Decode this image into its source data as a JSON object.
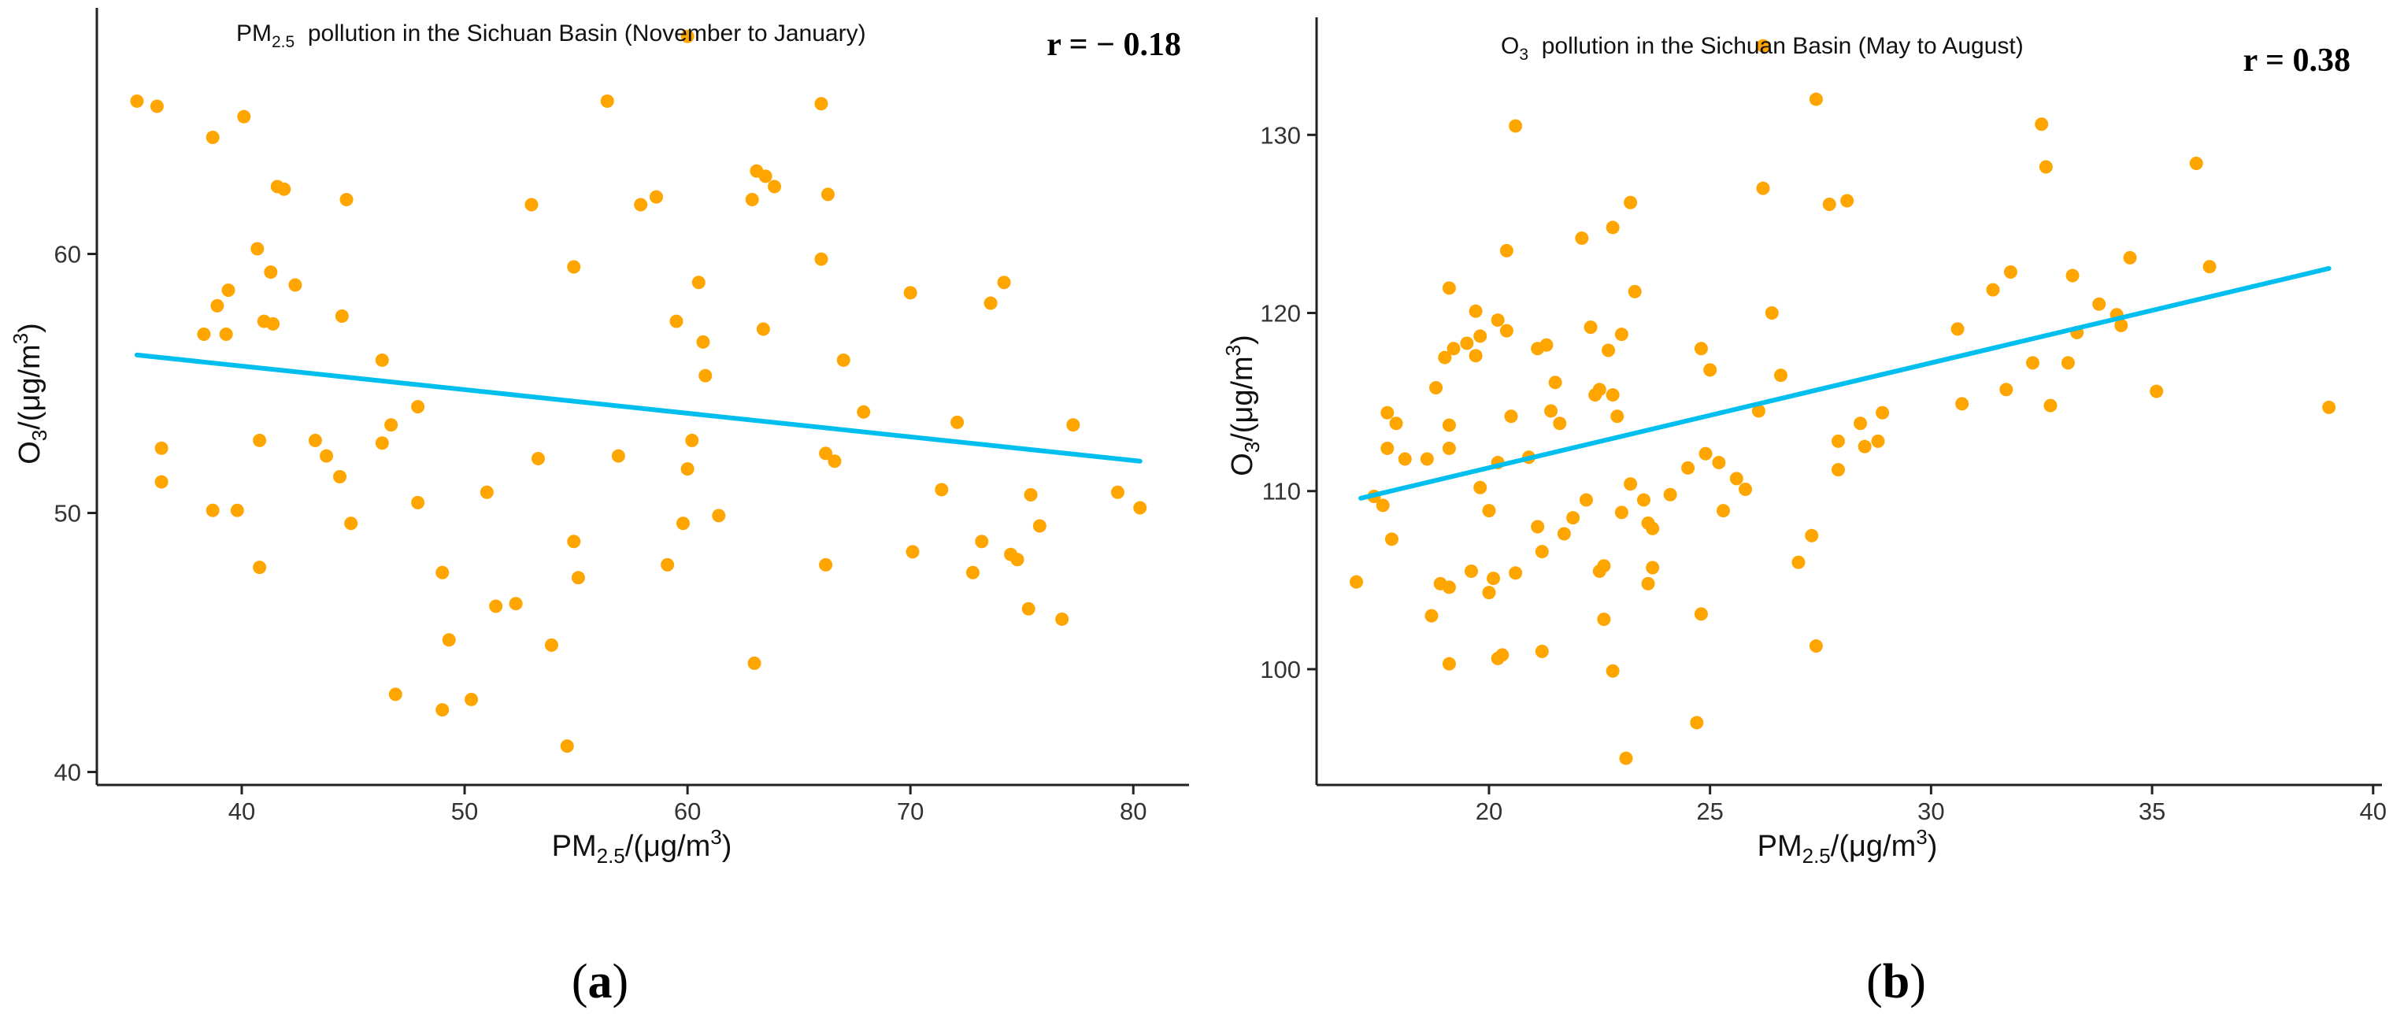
{
  "figure": {
    "panel_a": {
      "label_open": "(",
      "label_letter": "a",
      "label_close": ")"
    },
    "panel_b": {
      "label_open": "(",
      "label_letter": "b",
      "label_close": ")"
    }
  },
  "colors": {
    "point": "#FFA500",
    "trendline": "#00BFEF",
    "axis": "#222222"
  },
  "chart_data": [
    {
      "id": "a",
      "type": "scatter",
      "title_prefix": "PM",
      "title_sub": "2.5",
      "title_rest": "  pollution in the Sichuan Basin (November to January)",
      "annotation": "r = − 0.18",
      "xlabel_base": "PM",
      "xlabel_sub": "2.5",
      "xlabel_unit": "/(μg/m",
      "xlabel_sup": "3",
      "xlabel_close": ")",
      "ylabel_base": "O",
      "ylabel_sub": "3",
      "ylabel_unit": "/(μg/m",
      "ylabel_sup": "3",
      "ylabel_close": ")",
      "xlim": [
        33.5,
        82.5
      ],
      "ylim": [
        39.5,
        69.5
      ],
      "xticks": [
        40,
        50,
        60,
        70,
        80
      ],
      "yticks": [
        40,
        50,
        60
      ],
      "trend": {
        "x": [
          35.3,
          80.3
        ],
        "y": [
          56.1,
          52.0
        ]
      },
      "points": [
        [
          35.3,
          65.9
        ],
        [
          36.2,
          65.7
        ],
        [
          36.4,
          52.5
        ],
        [
          36.4,
          51.2
        ],
        [
          38.3,
          56.9
        ],
        [
          38.7,
          50.1
        ],
        [
          38.7,
          64.5
        ],
        [
          38.9,
          58.0
        ],
        [
          39.3,
          56.9
        ],
        [
          39.4,
          58.6
        ],
        [
          39.8,
          50.1
        ],
        [
          40.1,
          65.3
        ],
        [
          40.7,
          60.2
        ],
        [
          40.8,
          52.8
        ],
        [
          40.8,
          47.9
        ],
        [
          41.0,
          57.4
        ],
        [
          41.3,
          59.3
        ],
        [
          41.4,
          57.3
        ],
        [
          41.6,
          62.6
        ],
        [
          41.9,
          62.5
        ],
        [
          42.4,
          58.8
        ],
        [
          43.3,
          52.8
        ],
        [
          43.8,
          52.2
        ],
        [
          44.4,
          51.4
        ],
        [
          44.5,
          57.6
        ],
        [
          44.7,
          62.1
        ],
        [
          44.9,
          49.6
        ],
        [
          46.3,
          52.7
        ],
        [
          46.3,
          55.9
        ],
        [
          46.7,
          53.4
        ],
        [
          46.9,
          43.0
        ],
        [
          47.9,
          54.1
        ],
        [
          47.9,
          50.4
        ],
        [
          49.0,
          47.7
        ],
        [
          49.0,
          42.4
        ],
        [
          49.3,
          45.1
        ],
        [
          50.3,
          42.8
        ],
        [
          51.0,
          50.8
        ],
        [
          51.4,
          46.4
        ],
        [
          52.3,
          46.5
        ],
        [
          53.0,
          61.9
        ],
        [
          53.3,
          52.1
        ],
        [
          53.9,
          44.9
        ],
        [
          54.6,
          41.0
        ],
        [
          54.9,
          59.5
        ],
        [
          54.9,
          48.9
        ],
        [
          55.1,
          47.5
        ],
        [
          56.4,
          65.9
        ],
        [
          56.9,
          52.2
        ],
        [
          57.9,
          61.9
        ],
        [
          58.6,
          62.2
        ],
        [
          59.1,
          48.0
        ],
        [
          59.5,
          57.4
        ],
        [
          59.8,
          49.6
        ],
        [
          60.0,
          51.7
        ],
        [
          60.0,
          68.4
        ],
        [
          60.2,
          52.8
        ],
        [
          60.5,
          58.9
        ],
        [
          60.7,
          56.6
        ],
        [
          60.8,
          55.3
        ],
        [
          61.4,
          49.9
        ],
        [
          62.9,
          62.1
        ],
        [
          63.0,
          44.2
        ],
        [
          63.1,
          63.2
        ],
        [
          63.4,
          57.1
        ],
        [
          63.5,
          63.0
        ],
        [
          63.9,
          62.6
        ],
        [
          66.0,
          65.8
        ],
        [
          66.0,
          59.8
        ],
        [
          66.2,
          52.3
        ],
        [
          66.2,
          48.0
        ],
        [
          66.3,
          62.3
        ],
        [
          66.6,
          52.0
        ],
        [
          67.0,
          55.9
        ],
        [
          67.9,
          53.9
        ],
        [
          70.0,
          58.5
        ],
        [
          70.1,
          48.5
        ],
        [
          71.4,
          50.9
        ],
        [
          72.1,
          53.5
        ],
        [
          72.8,
          47.7
        ],
        [
          73.2,
          48.9
        ],
        [
          73.6,
          58.1
        ],
        [
          74.2,
          58.9
        ],
        [
          74.5,
          48.4
        ],
        [
          74.8,
          48.2
        ],
        [
          75.3,
          46.3
        ],
        [
          75.4,
          50.7
        ],
        [
          75.8,
          49.5
        ],
        [
          76.8,
          45.9
        ],
        [
          77.3,
          53.4
        ],
        [
          79.3,
          50.8
        ],
        [
          80.3,
          50.2
        ]
      ]
    },
    {
      "id": "b",
      "type": "scatter",
      "title_prefix": "O",
      "title_sub": "3",
      "title_rest": "  pollution in the Sichuan Basin (May to August)",
      "annotation": "r = 0.38",
      "xlabel_base": "PM",
      "xlabel_sub": "2.5",
      "xlabel_unit": "/(μg/m",
      "xlabel_sup": "3",
      "xlabel_close": ")",
      "ylabel_base": "O",
      "ylabel_sub": "3",
      "ylabel_unit": "/(μg/m",
      "ylabel_sup": "3",
      "ylabel_close": ")",
      "xlim": [
        16.1,
        40.2
      ],
      "ylim": [
        93.5,
        136.6
      ],
      "xticks": [
        20,
        25,
        30,
        35,
        40
      ],
      "yticks": [
        100,
        110,
        120,
        130
      ],
      "trend": {
        "x": [
          17.1,
          39.0
        ],
        "y": [
          109.6,
          122.5
        ]
      },
      "points": [
        [
          17.0,
          104.9
        ],
        [
          17.4,
          109.7
        ],
        [
          17.6,
          109.2
        ],
        [
          17.7,
          114.4
        ],
        [
          17.7,
          112.4
        ],
        [
          17.8,
          107.3
        ],
        [
          17.9,
          113.8
        ],
        [
          18.1,
          111.8
        ],
        [
          18.6,
          111.8
        ],
        [
          18.7,
          103.0
        ],
        [
          18.8,
          115.8
        ],
        [
          18.9,
          104.8
        ],
        [
          19.0,
          117.5
        ],
        [
          19.1,
          121.4
        ],
        [
          19.1,
          113.7
        ],
        [
          19.1,
          112.4
        ],
        [
          19.2,
          118.0
        ],
        [
          19.1,
          104.6
        ],
        [
          19.1,
          100.3
        ],
        [
          19.5,
          118.3
        ],
        [
          19.6,
          105.5
        ],
        [
          19.7,
          117.6
        ],
        [
          19.7,
          120.1
        ],
        [
          19.8,
          118.7
        ],
        [
          19.8,
          110.2
        ],
        [
          20.0,
          108.9
        ],
        [
          20.0,
          104.3
        ],
        [
          20.2,
          119.6
        ],
        [
          20.1,
          105.1
        ],
        [
          20.2,
          111.6
        ],
        [
          20.2,
          100.6
        ],
        [
          20.3,
          100.8
        ],
        [
          20.4,
          123.5
        ],
        [
          20.4,
          119.0
        ],
        [
          20.5,
          114.2
        ],
        [
          20.6,
          105.4
        ],
        [
          20.6,
          130.5
        ],
        [
          20.9,
          111.9
        ],
        [
          21.1,
          118.0
        ],
        [
          21.1,
          108.0
        ],
        [
          21.2,
          106.6
        ],
        [
          21.2,
          101.0
        ],
        [
          21.3,
          118.2
        ],
        [
          21.4,
          114.5
        ],
        [
          21.5,
          116.1
        ],
        [
          21.6,
          113.8
        ],
        [
          21.7,
          107.6
        ],
        [
          21.9,
          108.5
        ],
        [
          22.1,
          124.2
        ],
        [
          22.2,
          109.5
        ],
        [
          22.3,
          119.2
        ],
        [
          22.4,
          115.4
        ],
        [
          22.5,
          105.5
        ],
        [
          22.5,
          115.7
        ],
        [
          22.6,
          105.8
        ],
        [
          22.6,
          102.8
        ],
        [
          22.7,
          117.9
        ],
        [
          22.8,
          99.9
        ],
        [
          22.8,
          124.8
        ],
        [
          22.8,
          115.4
        ],
        [
          22.9,
          114.2
        ],
        [
          23.0,
          118.8
        ],
        [
          23.0,
          108.8
        ],
        [
          23.1,
          95.0
        ],
        [
          23.2,
          126.2
        ],
        [
          23.2,
          110.4
        ],
        [
          23.3,
          121.2
        ],
        [
          23.5,
          109.5
        ],
        [
          23.6,
          104.8
        ],
        [
          23.6,
          108.2
        ],
        [
          23.7,
          107.9
        ],
        [
          23.7,
          105.7
        ],
        [
          24.1,
          109.8
        ],
        [
          24.5,
          111.3
        ],
        [
          24.7,
          97.0
        ],
        [
          24.8,
          118.0
        ],
        [
          24.8,
          103.1
        ],
        [
          24.9,
          112.1
        ],
        [
          25.0,
          116.8
        ],
        [
          25.2,
          111.6
        ],
        [
          25.3,
          108.9
        ],
        [
          25.6,
          110.7
        ],
        [
          25.8,
          110.1
        ],
        [
          26.1,
          114.5
        ],
        [
          26.2,
          127.0
        ],
        [
          26.2,
          135.0
        ],
        [
          26.4,
          120.0
        ],
        [
          26.6,
          116.5
        ],
        [
          27.0,
          106.0
        ],
        [
          27.3,
          107.5
        ],
        [
          27.4,
          132.0
        ],
        [
          27.4,
          101.3
        ],
        [
          27.7,
          126.1
        ],
        [
          27.9,
          111.2
        ],
        [
          27.9,
          112.8
        ],
        [
          28.1,
          126.3
        ],
        [
          28.4,
          113.8
        ],
        [
          28.5,
          112.5
        ],
        [
          28.8,
          112.8
        ],
        [
          28.9,
          114.4
        ],
        [
          30.6,
          119.1
        ],
        [
          30.7,
          114.9
        ],
        [
          31.4,
          121.3
        ],
        [
          31.7,
          115.7
        ],
        [
          31.8,
          122.3
        ],
        [
          32.3,
          117.2
        ],
        [
          32.5,
          130.6
        ],
        [
          32.6,
          128.2
        ],
        [
          32.7,
          114.8
        ],
        [
          33.1,
          117.2
        ],
        [
          33.2,
          122.1
        ],
        [
          33.3,
          118.9
        ],
        [
          33.8,
          120.5
        ],
        [
          34.2,
          119.9
        ],
        [
          34.3,
          119.3
        ],
        [
          34.5,
          123.1
        ],
        [
          35.1,
          115.6
        ],
        [
          36.0,
          128.4
        ],
        [
          36.3,
          122.6
        ],
        [
          39.0,
          114.7
        ]
      ]
    }
  ]
}
